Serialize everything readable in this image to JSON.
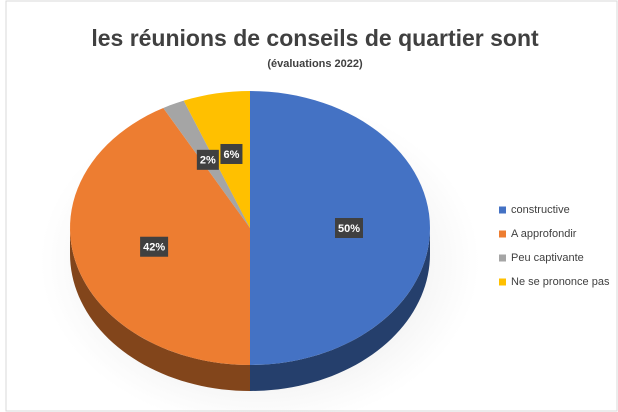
{
  "chart_data": {
    "type": "pie",
    "title": "les réunions de conseils de quartier sont",
    "subtitle": "(évaluations 2022)",
    "categories": [
      "constructive",
      "A approfondir",
      "Peu captivante",
      "Ne se prononce pas"
    ],
    "values": [
      50,
      42,
      2,
      6
    ],
    "value_labels": [
      "50%",
      "42%",
      "2%",
      "6%"
    ],
    "colors": [
      "#4472c4",
      "#ed7d31",
      "#a5a5a5",
      "#ffc000"
    ],
    "legend": "right"
  }
}
